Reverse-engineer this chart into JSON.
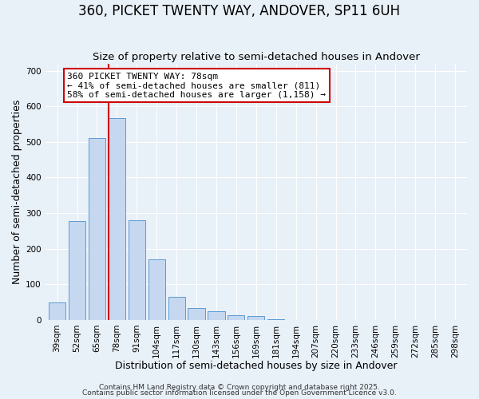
{
  "title": "360, PICKET TWENTY WAY, ANDOVER, SP11 6UH",
  "subtitle": "Size of property relative to semi-detached houses in Andover",
  "xlabel": "Distribution of semi-detached houses by size in Andover",
  "ylabel": "Number of semi-detached properties",
  "bin_labels": [
    "39sqm",
    "52sqm",
    "65sqm",
    "78sqm",
    "91sqm",
    "104sqm",
    "117sqm",
    "130sqm",
    "143sqm",
    "156sqm",
    "169sqm",
    "181sqm",
    "194sqm",
    "207sqm",
    "220sqm",
    "233sqm",
    "246sqm",
    "259sqm",
    "272sqm",
    "285sqm",
    "298sqm"
  ],
  "bar_values": [
    50,
    278,
    510,
    567,
    280,
    170,
    65,
    33,
    24,
    12,
    10,
    2,
    0,
    0,
    0,
    0,
    0,
    0,
    0,
    0,
    0
  ],
  "bar_color": "#c5d8f0",
  "bar_edge_color": "#5b9bd5",
  "property_bin_index": 3,
  "vline_color": "#cc0000",
  "annotation_text": "360 PICKET TWENTY WAY: 78sqm\n← 41% of semi-detached houses are smaller (811)\n58% of semi-detached houses are larger (1,158) →",
  "annotation_box_color": "#ffffff",
  "annotation_box_edge": "#cc0000",
  "ylim": [
    0,
    720
  ],
  "yticks": [
    0,
    100,
    200,
    300,
    400,
    500,
    600,
    700
  ],
  "bg_color": "#e8f0f8",
  "footer1": "Contains HM Land Registry data © Crown copyright and database right 2025.",
  "footer2": "Contains public sector information licensed under the Open Government Licence v3.0.",
  "title_fontsize": 12,
  "subtitle_fontsize": 9.5,
  "label_fontsize": 9,
  "tick_fontsize": 7.5,
  "annotation_fontsize": 8,
  "footer_fontsize": 6.5
}
